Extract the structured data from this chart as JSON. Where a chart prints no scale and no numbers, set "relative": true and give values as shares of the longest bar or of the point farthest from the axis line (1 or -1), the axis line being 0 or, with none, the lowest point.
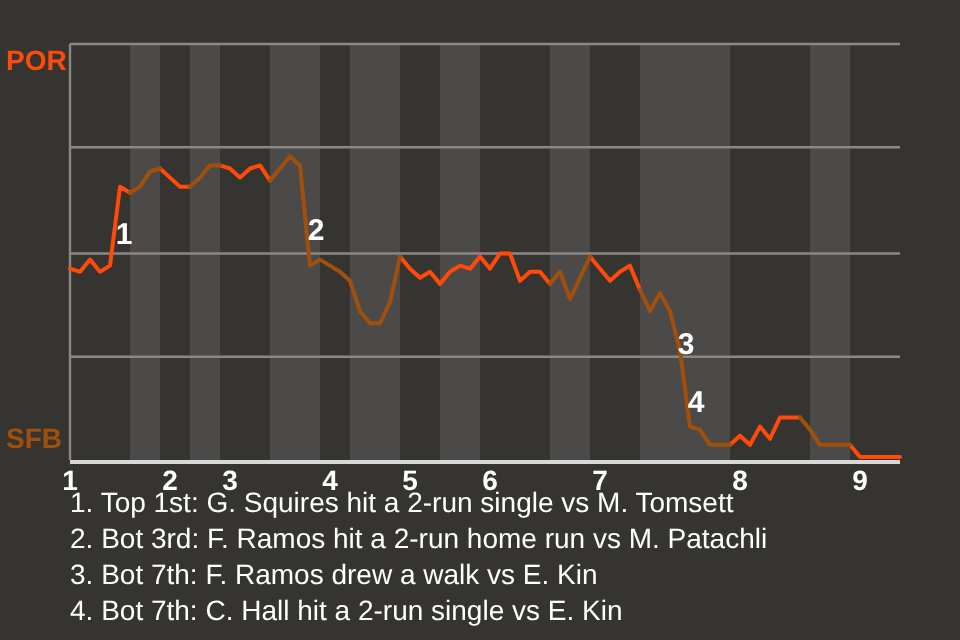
{
  "chart_data": {
    "type": "line",
    "relative": true,
    "categories": [
      "1",
      null,
      null,
      null,
      null,
      null,
      null,
      null,
      null,
      null,
      "2",
      null,
      null,
      null,
      null,
      null,
      "3",
      null,
      null,
      null,
      null,
      null,
      null,
      null,
      null,
      null,
      "4",
      null,
      null,
      null,
      null,
      null,
      null,
      null,
      "5",
      null,
      null,
      null,
      null,
      null,
      null,
      null,
      "6",
      null,
      null,
      null,
      null,
      null,
      null,
      null,
      null,
      null,
      null,
      "7",
      null,
      null,
      null,
      null,
      null,
      null,
      null,
      null,
      null,
      null,
      null,
      null,
      null,
      "8",
      null,
      null,
      null,
      null,
      null,
      null,
      null,
      null,
      null,
      null,
      null,
      "9",
      null,
      null,
      null,
      null
    ],
    "line_style": "solid",
    "ref_lines": [
      {
        "axis": "y",
        "value": 0.34,
        "color": "#8a8885"
      },
      {
        "axis": "y",
        "value": 0.68,
        "color": "#8a8885"
      },
      {
        "axis": "y",
        "value": 1.03,
        "color": "#8a8885"
      }
    ],
    "series": [
      {
        "color": "#ff4a0a",
        "values": [
          0.63,
          0.62,
          0.66,
          0.62,
          0.64,
          0.9,
          0.88,
          null,
          null,
          0.96,
          0.93,
          0.9,
          0.9,
          null,
          null,
          0.97,
          0.96,
          0.93,
          0.96,
          0.97,
          0.92,
          null,
          null,
          null,
          null,
          null,
          null,
          null,
          null,
          null,
          null,
          null,
          null,
          0.67,
          0.63,
          0.6,
          0.62,
          0.58,
          0.62,
          0.64,
          0.63,
          0.67,
          0.63,
          0.68,
          0.68,
          0.59,
          0.62,
          0.62,
          0.58,
          null,
          null,
          null,
          0.67,
          0.63,
          0.59,
          0.62,
          0.64,
          0.56,
          null,
          null,
          null,
          null,
          null,
          null,
          null,
          null,
          0.05,
          0.08,
          0.05,
          0.11,
          0.07,
          0.14,
          0.14,
          0.14,
          null,
          null,
          null,
          null,
          0.05,
          0.01,
          0.01,
          0.01,
          0.01,
          0.01
        ]
      },
      {
        "color": "#a0500c",
        "values": [
          null,
          null,
          null,
          null,
          null,
          null,
          0.88,
          0.9,
          0.95,
          0.96,
          null,
          null,
          0.9,
          0.93,
          0.97,
          0.97,
          null,
          null,
          null,
          null,
          0.92,
          0.96,
          1,
          0.97,
          0.64,
          0.66,
          0.64,
          0.62,
          0.59,
          0.49,
          0.45,
          0.45,
          0.52,
          0.67,
          null,
          null,
          null,
          null,
          null,
          null,
          null,
          null,
          null,
          null,
          null,
          null,
          null,
          null,
          0.58,
          0.62,
          0.53,
          0.6,
          0.67,
          null,
          null,
          null,
          null,
          0.56,
          0.49,
          0.55,
          0.49,
          0.36,
          0.11,
          0.1,
          0.05,
          0.05,
          0.05,
          null,
          null,
          null,
          null,
          null,
          null,
          0.14,
          0.1,
          0.05,
          0.05,
          0.05,
          0.05,
          null,
          null,
          null,
          null,
          null
        ]
      }
    ],
    "annotations": [
      "POR",
      "SFB",
      "1",
      "2",
      "3",
      "4",
      "1. Top 1st: G. Squires hit a 2-run single vs M. Tomsett",
      "2. Bot 3rd: F. Ramos hit a 2-run home run vs M. Patachli",
      "3. Bot 7th: F. Ramos drew a walk vs E. Kin",
      "4. Bot 7th: C. Hall hit a 2-run single vs E. Kin"
    ]
  }
}
